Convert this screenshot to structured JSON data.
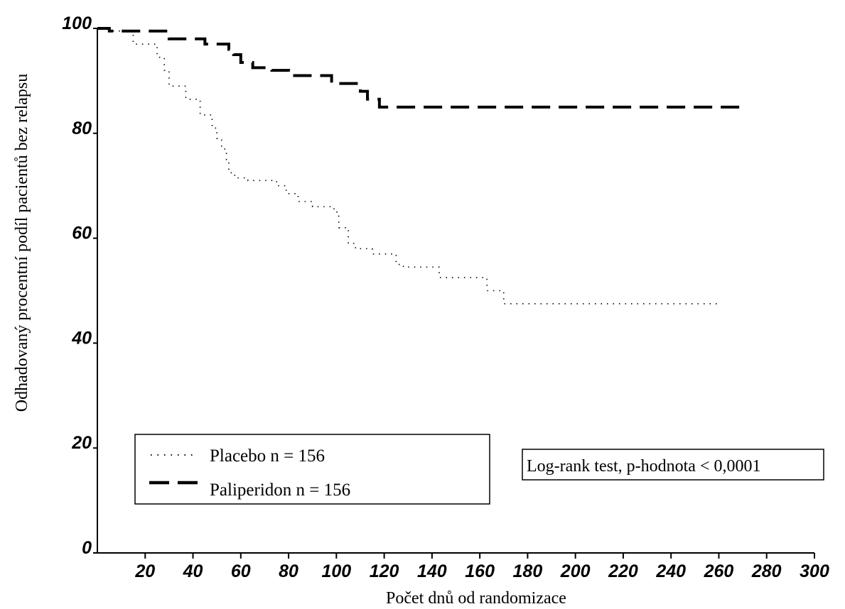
{
  "chart_data": {
    "type": "line",
    "title": "",
    "xlabel": "Počet dnů od randomizace",
    "ylabel": "Odhadovaný procentní podíl pacientů bez relapsu",
    "xlim": [
      0,
      300
    ],
    "ylim": [
      0,
      100
    ],
    "x_ticks": [
      "20",
      "40",
      "60",
      "80",
      "100",
      "120",
      "140",
      "160",
      "180",
      "200",
      "220",
      "240",
      "260",
      "280",
      "300"
    ],
    "y_ticks": [
      "0",
      "20",
      "40",
      "60",
      "80",
      "100"
    ],
    "grid": false,
    "legend_position": "bottom-left",
    "legend_labels": {
      "placebo": "Placebo n = 156",
      "paliperidon": "Paliperidon n = 156"
    },
    "annotation": "Log-rank test, p-hodnota  < 0,0001",
    "series": [
      {
        "name": "Placebo n = 156",
        "style": "dotted",
        "color": "#000000",
        "step": true,
        "x": [
          0,
          5,
          15,
          25,
          28,
          30,
          37,
          43,
          48,
          50,
          52,
          54,
          55,
          56,
          58,
          63,
          75,
          79,
          84,
          90,
          99,
          101,
          105,
          108,
          115,
          125,
          128,
          143,
          163,
          170,
          260
        ],
        "y": [
          100,
          99.5,
          97,
          94.5,
          92,
          89,
          86.5,
          83.5,
          81,
          79,
          77,
          75,
          73,
          72,
          71.5,
          71,
          70,
          68.5,
          67,
          66,
          65,
          62,
          59,
          58,
          57,
          55,
          54.5,
          52.5,
          50,
          47.5,
          47.5
        ]
      },
      {
        "name": "Paliperidon n = 156",
        "style": "dashed",
        "color": "#000000",
        "step": true,
        "x": [
          0,
          5,
          30,
          45,
          55,
          57,
          60,
          65,
          73,
          80,
          98,
          110,
          113,
          118,
          272
        ],
        "y": [
          100,
          99.5,
          98,
          97,
          96,
          95,
          93.5,
          92.5,
          92,
          91,
          89.5,
          88,
          86.5,
          85,
          85
        ]
      }
    ]
  }
}
